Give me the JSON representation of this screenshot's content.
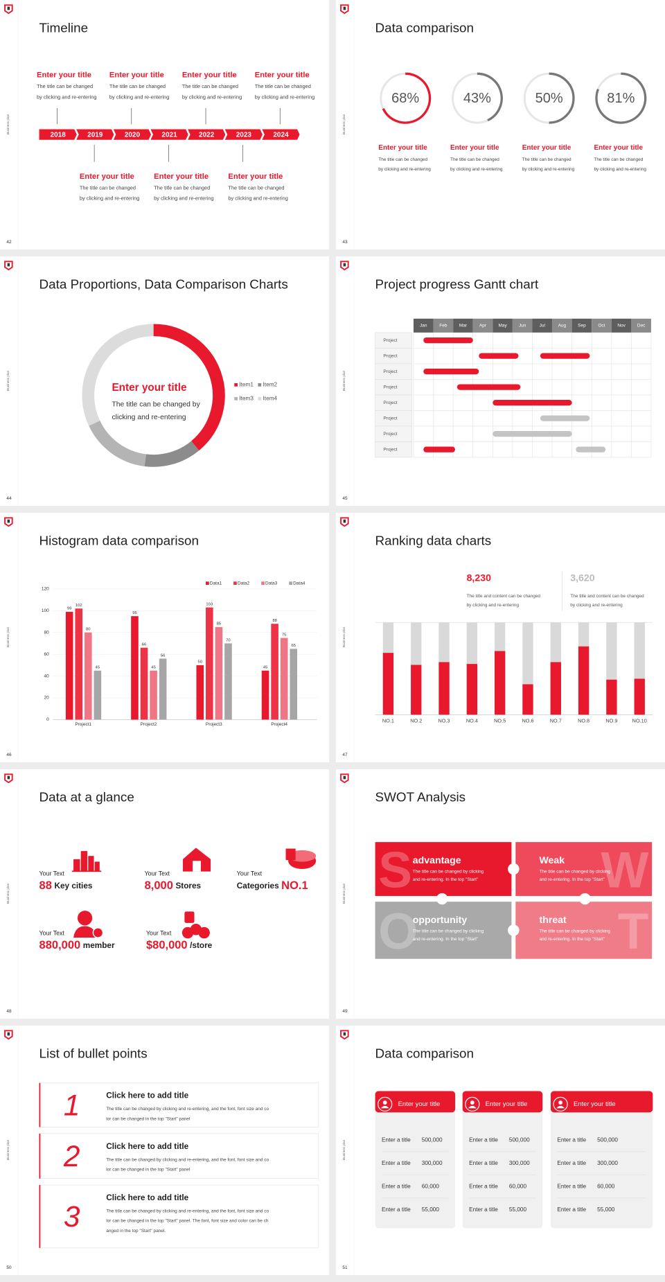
{
  "side_label": "Business plan",
  "slides": [
    {
      "type": "timeline",
      "number": 42,
      "title": "Timeline",
      "years": [
        2018,
        2019,
        2020,
        2021,
        2022,
        2023,
        2024
      ],
      "top_items": [
        {
          "title": "Enter your title",
          "lines": [
            "The title can be changed",
            "by clicking and re-entering"
          ]
        },
        {
          "title": "Enter your title",
          "lines": [
            "The title can be changed",
            "by clicking and re-entering"
          ]
        },
        {
          "title": "Enter your title",
          "lines": [
            "The title can be changed",
            "by clicking and re-entering"
          ]
        },
        {
          "title": "Enter your title",
          "lines": [
            "The title can be changed",
            "by clicking and re-entering"
          ]
        }
      ],
      "bottom_items": [
        {
          "title": "Enter your title",
          "lines": [
            "The title can be changed",
            "by clicking and re-entering"
          ]
        },
        {
          "title": "Enter your title",
          "lines": [
            "The title can be changed",
            "by clicking and re-entering"
          ]
        },
        {
          "title": "Enter your title",
          "lines": [
            "The title can be changed",
            "by clicking and re-entering"
          ]
        }
      ]
    },
    {
      "type": "rings",
      "number": 43,
      "title": "Data comparison",
      "values": [
        68,
        43,
        50,
        81
      ],
      "value_labels": [
        "68%",
        "43%",
        "50%",
        "81%"
      ],
      "colors": [
        "#e8192c",
        "#777777",
        "#777777",
        "#777777"
      ],
      "items": [
        {
          "title": "Enter your title",
          "lines": [
            "The title can be changed",
            "by clicking and re-entering"
          ]
        },
        {
          "title": "Enter your title",
          "lines": [
            "The title can be changed",
            "by clicking and re-entering"
          ]
        },
        {
          "title": "Enter your title",
          "lines": [
            "The title can be changed",
            "by clicking and re-entering"
          ]
        },
        {
          "title": "Enter your title",
          "lines": [
            "The title can be changed",
            "by clicking and re-entering"
          ]
        }
      ]
    },
    {
      "type": "donut",
      "number": 44,
      "title": "Data Proportions, Data Comparison Charts",
      "center_title": "Enter your title",
      "center_lines": [
        "The title can be changed by",
        "clicking and re-entering"
      ],
      "items": [
        {
          "name": "Item1",
          "value": 39,
          "color": "#e8192c"
        },
        {
          "name": "Item2",
          "value": 13,
          "color": "#8c8c8c"
        },
        {
          "name": "Item3",
          "value": 16,
          "color": "#b4b4b4"
        },
        {
          "name": "Item4",
          "value": 32,
          "color": "#dcdcdc"
        }
      ]
    },
    {
      "type": "gantt",
      "number": 45,
      "title": "Project progress Gantt chart",
      "months": [
        "Jan",
        "Feb",
        "Mar",
        "Apr",
        "May",
        "Jun",
        "Jul",
        "Aug",
        "Sep",
        "Oct",
        "Nov",
        "Dec"
      ],
      "rows": [
        {
          "label": "Project",
          "bars": [
            {
              "start": 0.5,
              "end": 3,
              "color": "#e8192c"
            }
          ]
        },
        {
          "label": "Project",
          "bars": [
            {
              "start": 3.3,
              "end": 5.3,
              "color": "#e8192c"
            },
            {
              "start": 6.4,
              "end": 8.9,
              "color": "#e8192c"
            }
          ]
        },
        {
          "label": "Project",
          "bars": [
            {
              "start": 0.5,
              "end": 3.3,
              "color": "#e8192c"
            }
          ]
        },
        {
          "label": "Project",
          "bars": [
            {
              "start": 2.2,
              "end": 5.4,
              "color": "#e8192c"
            }
          ]
        },
        {
          "label": "Project",
          "bars": [
            {
              "start": 4,
              "end": 8,
              "color": "#e8192c"
            }
          ]
        },
        {
          "label": "Project",
          "bars": [
            {
              "start": 6.4,
              "end": 8.9,
              "color": "#c4c4c4"
            }
          ]
        },
        {
          "label": "Project",
          "bars": [
            {
              "start": 4,
              "end": 8,
              "color": "#c4c4c4"
            }
          ]
        },
        {
          "label": "Project",
          "bars": [
            {
              "start": 0.5,
              "end": 2.1,
              "color": "#e8192c"
            },
            {
              "start": 8.2,
              "end": 9.7,
              "color": "#c4c4c4"
            }
          ]
        }
      ]
    },
    {
      "type": "bar",
      "number": 46,
      "title": "Histogram data comparison",
      "categories": [
        "Project1",
        "Project2",
        "Project3",
        "Project4"
      ],
      "series": [
        {
          "name": "Data1",
          "color": "#e8192c",
          "values": [
            99,
            95,
            50,
            45
          ]
        },
        {
          "name": "Data2",
          "color": "#ef3347",
          "values": [
            102,
            66,
            103,
            88
          ]
        },
        {
          "name": "Data3",
          "color": "#f07585",
          "values": [
            80,
            45,
            85,
            75
          ]
        },
        {
          "name": "Data4",
          "color": "#a6a6a6",
          "values": [
            45,
            56,
            70,
            65
          ]
        }
      ],
      "ylim": [
        0,
        120
      ],
      "yticks": [
        0,
        20,
        40,
        60,
        80,
        100,
        120
      ],
      "grid": true
    },
    {
      "type": "ranking",
      "number": 47,
      "title": "Ranking data charts",
      "stats": [
        {
          "value": "8,230",
          "color": "#e8192c",
          "lines": [
            "The title and content can be changed",
            "by clicking and re-entering"
          ]
        },
        {
          "value": "3,620",
          "color": "#bbbbbb",
          "lines": [
            "The title and content can be changed",
            "by clicking and re-entering"
          ]
        }
      ],
      "categories": [
        "NO.1",
        "NO.2",
        "NO.3",
        "NO.4",
        "NO.5",
        "NO.6",
        "NO.7",
        "NO.8",
        "NO.9",
        "NO.10"
      ],
      "values": [
        67,
        54,
        57,
        55,
        69,
        33,
        57,
        74,
        38,
        39
      ],
      "color": "#e8192c",
      "ylim": [
        0,
        100
      ]
    },
    {
      "type": "stats",
      "number": 48,
      "title": "Data at a glance",
      "stats": [
        {
          "caption": "Your Text",
          "value": "88",
          "label": "Key cities"
        },
        {
          "caption": "Your Text",
          "value": "8,000",
          "label": "Stores"
        },
        {
          "caption": "Your Text",
          "label": "Categories",
          "value": "NO.1"
        },
        {
          "caption": "Your Text",
          "value": "880,000",
          "label": "member"
        },
        {
          "caption": "Your Text",
          "value": "$80,000",
          "label": "/store"
        }
      ]
    },
    {
      "type": "swot",
      "number": 49,
      "title": "SWOT Analysis",
      "blocks": [
        {
          "letter": "S",
          "title": "advantage",
          "color": "#e8192c",
          "lines": [
            "The title can be changed by clicking",
            "and re-entering. In the top \"Start\""
          ]
        },
        {
          "letter": "W",
          "title": "Weak",
          "color": "#ee4a5c",
          "lines": [
            "The title can be changed by clicking",
            "and re-entering. In the top \"Start\""
          ]
        },
        {
          "letter": "O",
          "title": "opportunity",
          "color": "#a9a9a9",
          "lines": [
            "The title can be changed by clicking",
            "and re-entering. In the top \"Start\""
          ]
        },
        {
          "letter": "T",
          "title": "threat",
          "color": "#f07c88",
          "lines": [
            "The title can be changed by clicking",
            "and re-entering. In the top \"Start\""
          ]
        }
      ]
    },
    {
      "type": "list",
      "number": 50,
      "title": "List of bullet points",
      "items": [
        {
          "number": 1,
          "title": "Click here to add title",
          "lines": [
            "The title can be changed by clicking and re-entering, and the font, font size and co",
            "lor can be changed in the top \"Start\" panel"
          ]
        },
        {
          "number": 2,
          "title": "Click here to add title",
          "lines": [
            "The title can be changed by clicking and re-entering, and the font, font size and co",
            "lor can be changed in the top \"Start\" panel"
          ]
        },
        {
          "number": 3,
          "title": "Click here to add title",
          "lines": [
            "The title can be changed by clicking and re-entering, and the font, font size and co",
            "lor can be changed in the top \"Start\" panel. The font, font size and color can be ch",
            "anged in the top \"Start\" panel."
          ]
        }
      ]
    },
    {
      "type": "cards",
      "number": 51,
      "title": "Data comparison",
      "cards": [
        {
          "title": "Enter your title",
          "rows": [
            {
              "label": "Enter a title",
              "value": "500,000"
            },
            {
              "label": "Enter a title",
              "value": "300,000"
            },
            {
              "label": "Enter a title",
              "value": "60,000"
            },
            {
              "label": "Enter a title",
              "value": "55,000"
            }
          ]
        },
        {
          "title": "Enter your title",
          "rows": [
            {
              "label": "Enter a title",
              "value": "500,000"
            },
            {
              "label": "Enter a title",
              "value": "300,000"
            },
            {
              "label": "Enter a title",
              "value": "60,000"
            },
            {
              "label": "Enter a title",
              "value": "55,000"
            }
          ]
        },
        {
          "title": "Enter your title",
          "rows": [
            {
              "label": "Enter a title",
              "value": "500,000"
            },
            {
              "label": "Enter a title",
              "value": "300,000"
            },
            {
              "label": "Enter a title",
              "value": "60,000"
            },
            {
              "label": "Enter a title",
              "value": "55,000"
            }
          ]
        }
      ]
    }
  ]
}
